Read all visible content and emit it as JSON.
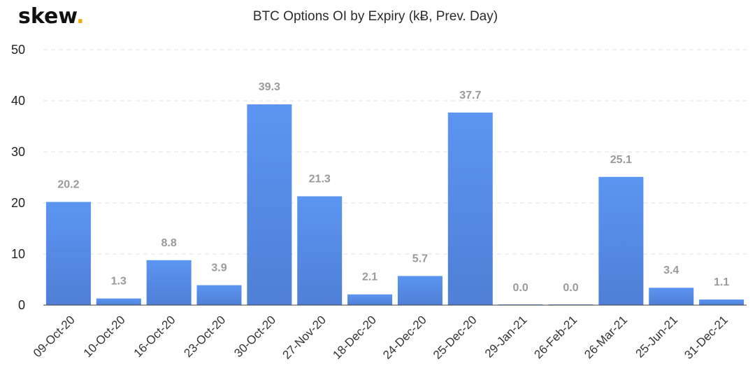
{
  "brand": {
    "logo_text": "skew",
    "logo_dot": ".",
    "dot_color": "#f2a900"
  },
  "chart_data": {
    "type": "bar",
    "title": "BTC Options OI by Expiry (kɃ, Prev. Day)",
    "xlabel": "",
    "ylabel": "",
    "ylim": [
      0,
      50
    ],
    "yticks": [
      0,
      10,
      20,
      30,
      40,
      50
    ],
    "grid": true,
    "legend": "none",
    "bar_color_top": "#5b95f2",
    "bar_color_bottom": "#4f7fd6",
    "categories": [
      "09-Oct-20",
      "10-Oct-20",
      "16-Oct-20",
      "23-Oct-20",
      "30-Oct-20",
      "27-Nov-20",
      "18-Dec-20",
      "24-Dec-20",
      "25-Dec-20",
      "29-Jan-21",
      "26-Feb-21",
      "26-Mar-21",
      "25-Jun-21",
      "31-Dec-21"
    ],
    "values": [
      20.2,
      1.3,
      8.8,
      3.9,
      39.3,
      21.3,
      2.1,
      5.7,
      37.7,
      0.0,
      0.0,
      25.1,
      3.4,
      1.1
    ],
    "data_labels": [
      "20.2",
      "1.3",
      "8.8",
      "3.9",
      "39.3",
      "21.3",
      "2.1",
      "5.7",
      "37.7",
      "0.0",
      "0.0",
      "25.1",
      "3.4",
      "1.1"
    ]
  }
}
